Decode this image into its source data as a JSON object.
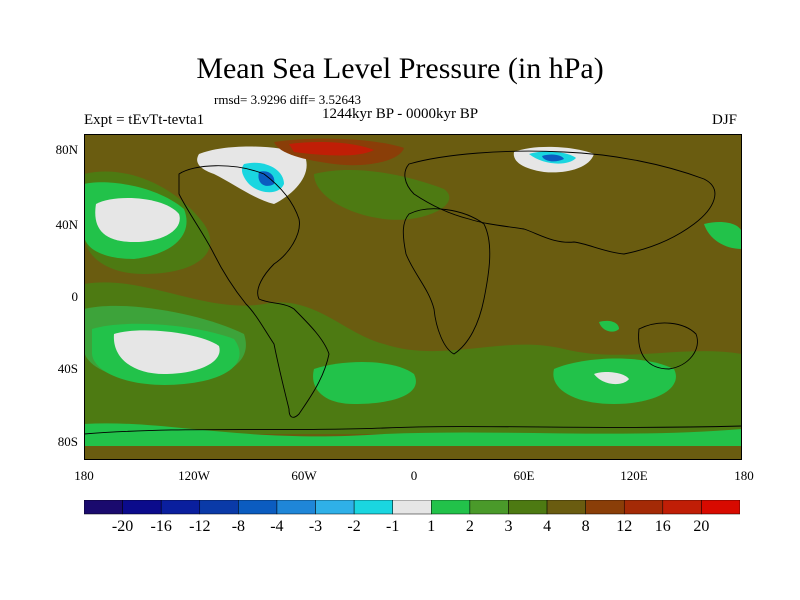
{
  "plot": {
    "title": "Mean Sea Level Pressure (in hPa)",
    "stats": "rmsd= 3.9296 diff= 3.52643",
    "left_label": "Expt = tEvTt-tevta1",
    "center_label": "1244kyr BP - 0000kyr BP",
    "right_label": "DJF"
  },
  "axes": {
    "lat_labels": [
      "80N",
      "40N",
      "0",
      "40S",
      "80S"
    ],
    "lon_labels": [
      "180",
      "120W",
      "60W",
      "0",
      "60E",
      "120E",
      "180"
    ]
  },
  "colorbar": {
    "labels": [
      "-20",
      "-16",
      "-12",
      "-8",
      "-4",
      "-3",
      "-2",
      "-1",
      "1",
      "2",
      "3",
      "4",
      "8",
      "12",
      "16",
      "20"
    ],
    "colors": [
      "#1a0a6e",
      "#0b0b8c",
      "#0a1f9e",
      "#0a3aa8",
      "#0b5cc0",
      "#1f86d8",
      "#2fb0e8",
      "#1ad6e0",
      "#e6e6e6",
      "#22c24a",
      "#4a9a2a",
      "#4d7a12",
      "#6a5c10",
      "#8a3e08",
      "#a42a06",
      "#c01e06",
      "#d80a00"
    ]
  },
  "map_colors": {
    "background": "#6a5c10",
    "ocean_mid": "#4d7a12",
    "green": "#22c24a",
    "lightgreen": "#3da33a",
    "white": "#e6e6e6",
    "orange": "#8a3e08",
    "red": "#c01e06",
    "cyan": "#1ad6e0",
    "blue": "#0b5cc0",
    "coast": "#000000"
  }
}
